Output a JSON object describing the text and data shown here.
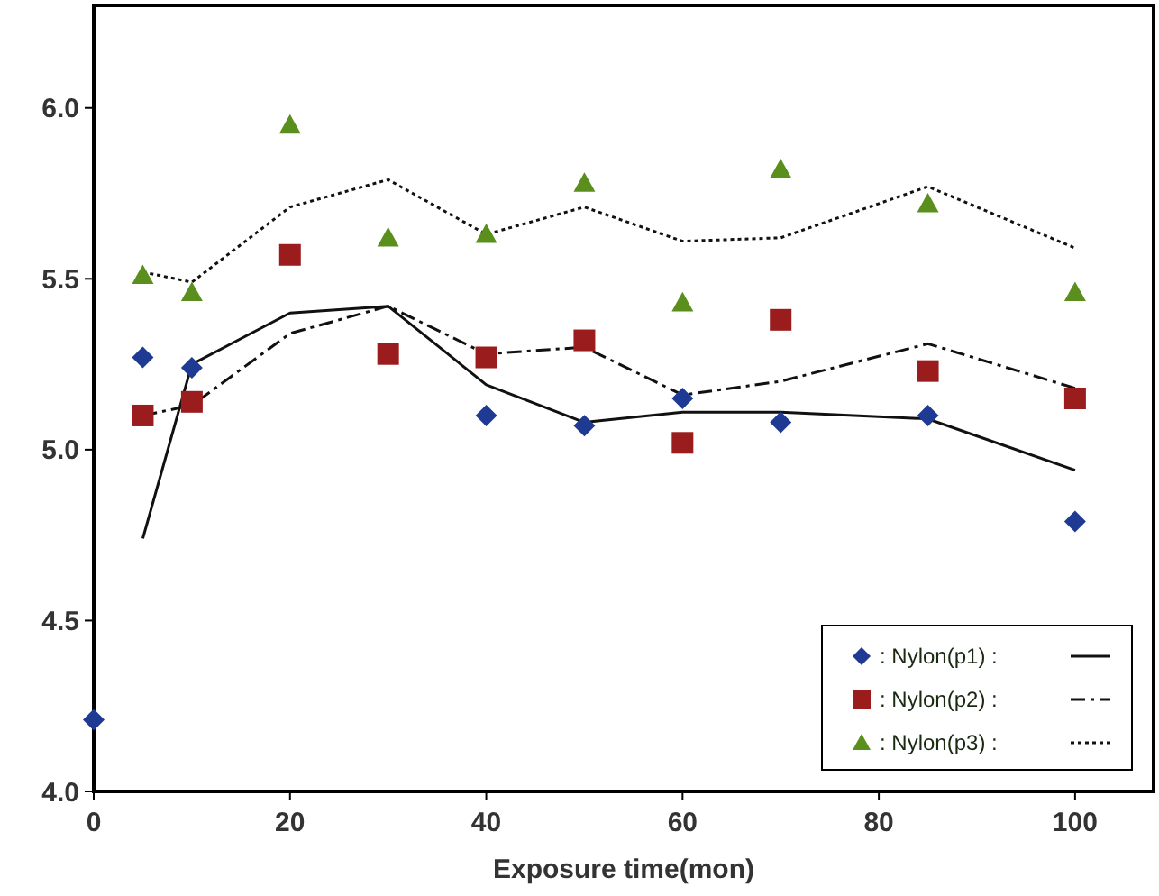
{
  "chart_data": {
    "type": "scatter",
    "xlabel": "Exposure time(mon)",
    "x": [
      0,
      5,
      10,
      20,
      30,
      40,
      50,
      60,
      70,
      85,
      100
    ],
    "xlim": [
      0,
      108
    ],
    "xticks": [
      0,
      20,
      40,
      60,
      80,
      100
    ],
    "ylim": [
      4,
      6.3
    ],
    "yticks": [
      {
        "value": 4,
        "label": "4.0"
      },
      {
        "value": 4.5,
        "label": "4.5"
      },
      {
        "value": 5,
        "label": "5.0"
      },
      {
        "value": 5.5,
        "label": "5.5"
      },
      {
        "value": 6,
        "label": "6.0"
      }
    ],
    "legend": "bottom right",
    "grid": false,
    "series": [
      {
        "name": ": Nylon(p1) :",
        "marker": "diamond",
        "color": "#1f3a93",
        "values": [
          4.21,
          5.27,
          5.24,
          null,
          null,
          5.1,
          5.07,
          5.15,
          5.08,
          5.1,
          4.79
        ]
      },
      {
        "name": ": Nylon(p2) :",
        "marker": "square",
        "color": "#9b1c1c",
        "values": [
          null,
          5.1,
          5.14,
          5.57,
          5.28,
          5.27,
          5.32,
          5.02,
          5.38,
          5.23,
          5.15
        ]
      },
      {
        "name": ": Nylon(p3) :",
        "marker": "triangle",
        "color": "#5a8f1e",
        "values": [
          null,
          5.51,
          5.46,
          5.95,
          5.62,
          5.63,
          5.78,
          5.43,
          5.82,
          5.72,
          5.46
        ]
      },
      {
        "type": "line",
        "line_style": "solid",
        "color": "#111111",
        "x": [
          5,
          10,
          20,
          30,
          40,
          50,
          60,
          70,
          85,
          100
        ],
        "values": [
          4.74,
          5.25,
          5.4,
          5.42,
          5.19,
          5.08,
          5.11,
          5.11,
          5.09,
          4.94
        ]
      },
      {
        "type": "line",
        "line_style": "dashdot",
        "color": "#111111",
        "x": [
          5,
          10,
          20,
          30,
          40,
          50,
          60,
          70,
          85,
          100
        ],
        "values": [
          5.1,
          5.13,
          5.34,
          5.42,
          5.28,
          5.3,
          5.16,
          5.2,
          5.31,
          5.18
        ]
      },
      {
        "type": "line",
        "line_style": "dotted",
        "color": "#111111",
        "x": [
          5,
          10,
          20,
          30,
          40,
          50,
          60,
          70,
          85,
          100
        ],
        "values": [
          5.52,
          5.49,
          5.71,
          5.79,
          5.63,
          5.71,
          5.61,
          5.62,
          5.77,
          5.59
        ]
      }
    ]
  }
}
